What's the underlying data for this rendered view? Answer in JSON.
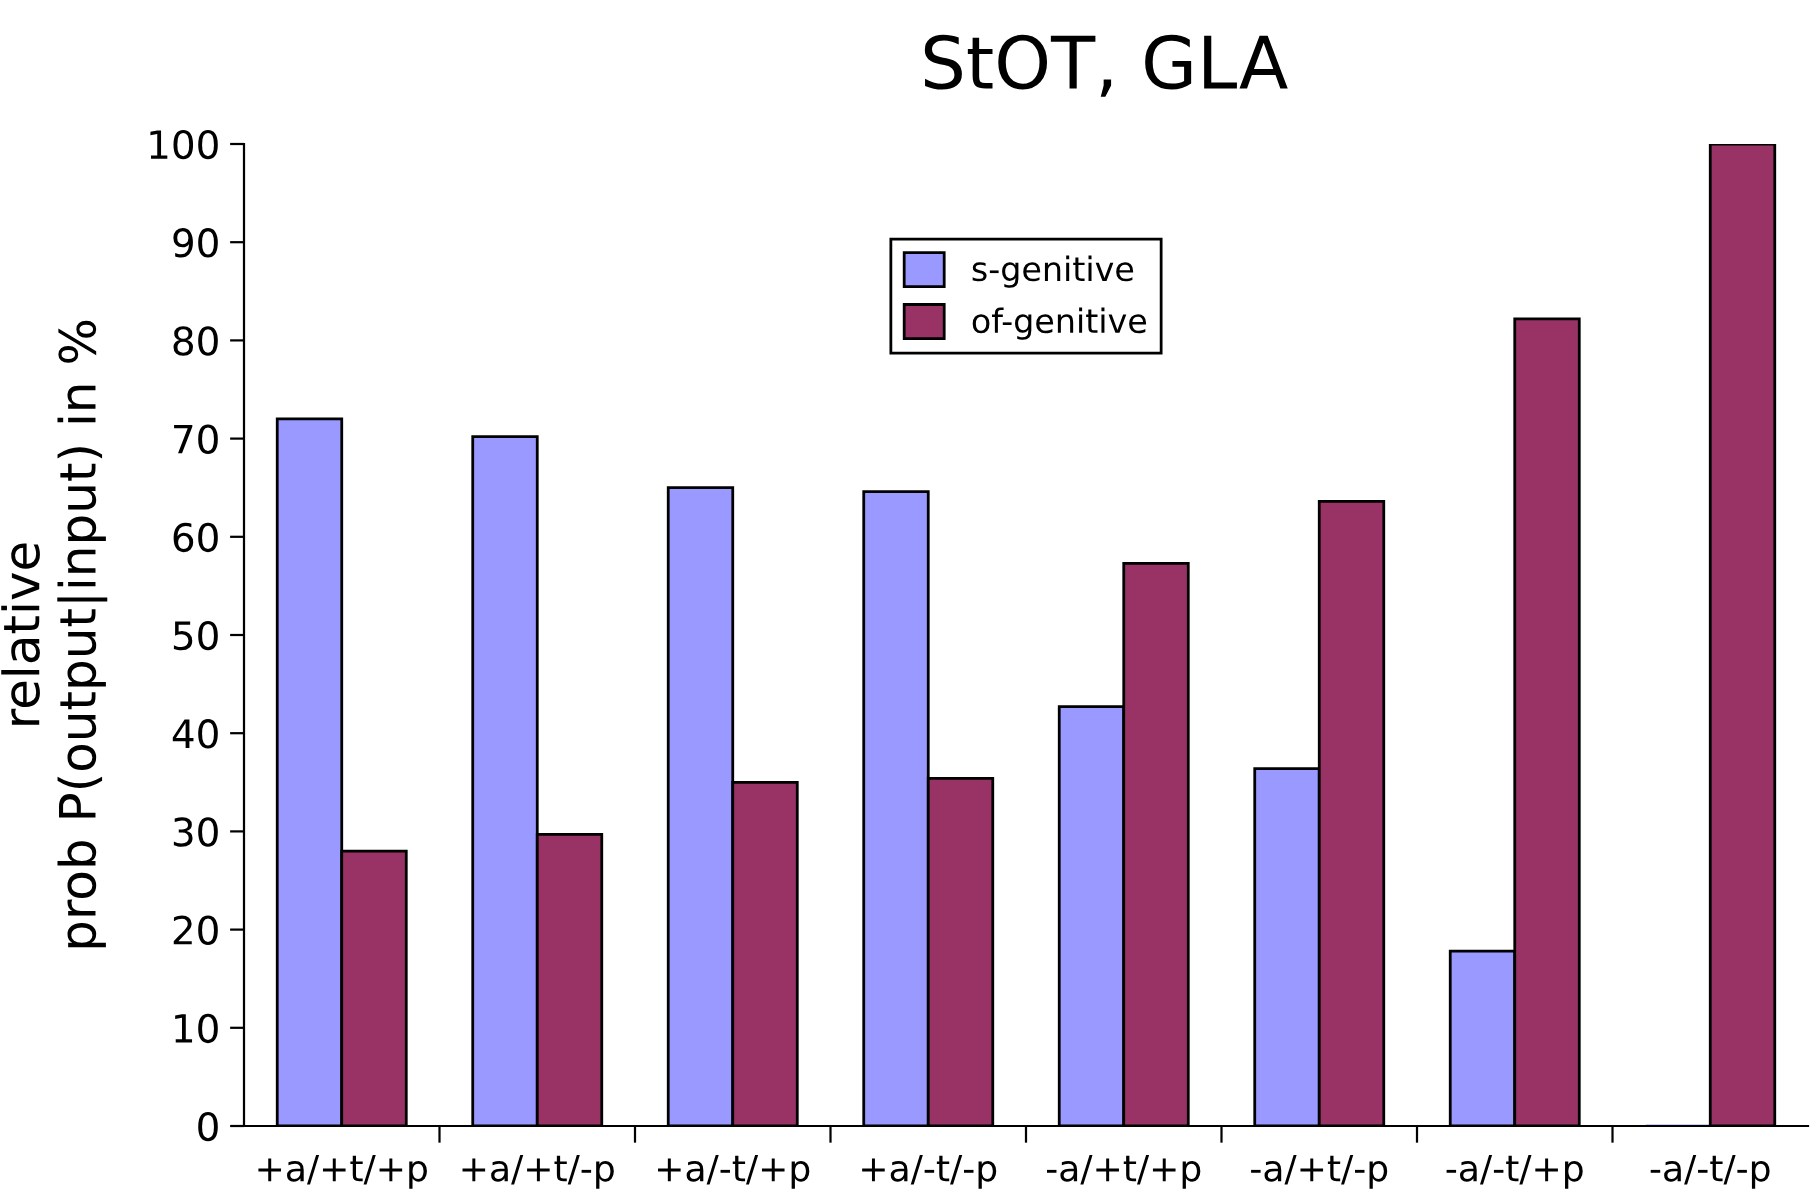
{
  "chart_data": {
    "type": "bar",
    "title": "StOT, GLA",
    "ylabel": "relative\nprob P(output|input) in %",
    "categories": [
      "+a/+t/+p",
      "+a/+t/-p",
      "+a/-t/+p",
      "+a/-t/-p",
      "-a/+t/+p",
      "-a/+t/-p",
      "-a/-t/+p",
      "-a/-t/-p"
    ],
    "series": [
      {
        "name": "s-genitive",
        "color": "#9999ff",
        "values": [
          72.0,
          70.2,
          65.0,
          64.6,
          42.7,
          36.4,
          17.8,
          0
        ]
      },
      {
        "name": "of-genitive",
        "color": "#993366",
        "values": [
          28.0,
          29.7,
          35.0,
          35.4,
          57.3,
          63.6,
          82.2,
          100
        ]
      }
    ],
    "ylim": [
      0,
      100
    ],
    "yticks": [
      0,
      10,
      20,
      30,
      40,
      50,
      60,
      70,
      80,
      90,
      100
    ],
    "grid": false,
    "legend": "top"
  }
}
